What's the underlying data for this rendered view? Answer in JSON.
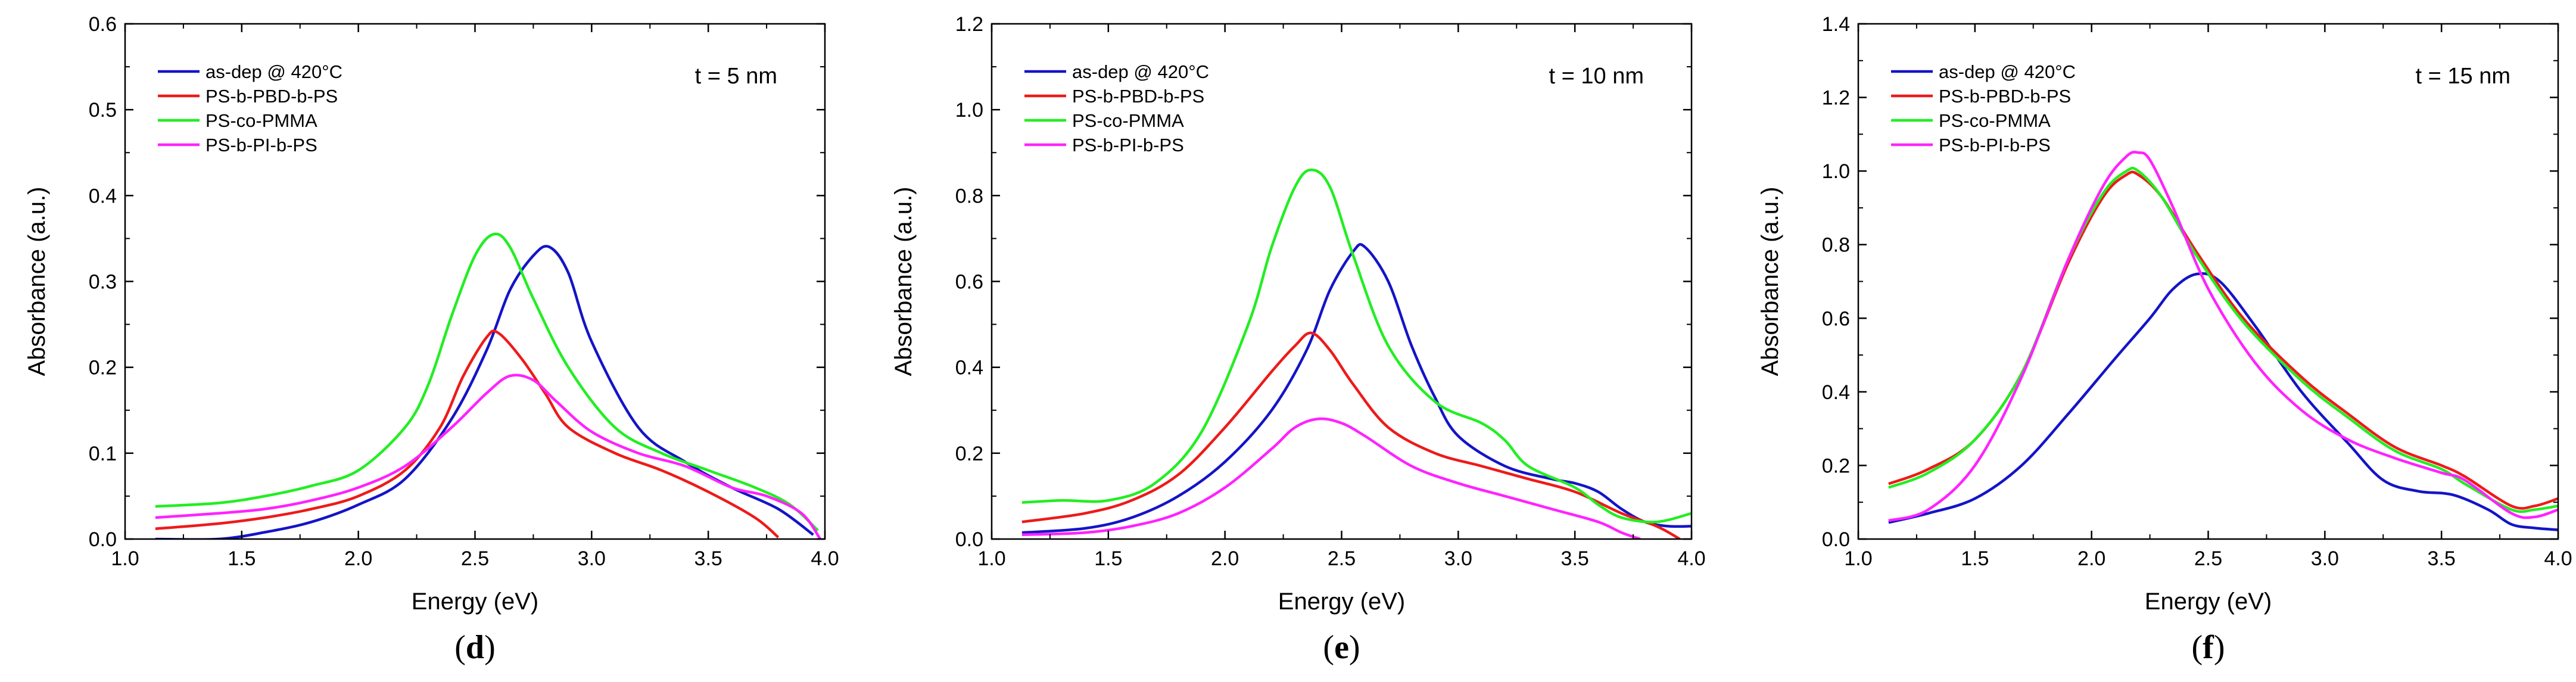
{
  "colors": {
    "as-dep": "#1414c8",
    "pbd": "#ee1a1a",
    "pmma": "#22ee22",
    "pi": "#ff22ff",
    "axis": "#000000"
  },
  "chart_data": [
    {
      "type": "line",
      "panel": "(d)",
      "panel_letter": "d",
      "annotation": "t = 5 nm",
      "xlabel": "Energy (eV)",
      "ylabel": "Absorbance (a.u.)",
      "xlim": [
        1.0,
        4.0
      ],
      "ylim": [
        0.0,
        0.6
      ],
      "xticks": [
        "1.0",
        "1.5",
        "2.0",
        "2.5",
        "3.0",
        "3.5",
        "4.0"
      ],
      "yticks": [
        "0.0",
        "0.1",
        "0.2",
        "0.3",
        "0.4",
        "0.5",
        "0.6"
      ],
      "legend_position": "top-left",
      "series": [
        {
          "name": "as-dep @ 420°C",
          "color_key": "as-dep",
          "x": [
            1.13,
            1.4,
            1.6,
            1.8,
            2.0,
            2.2,
            2.4,
            2.55,
            2.65,
            2.75,
            2.82,
            2.9,
            3.0,
            3.2,
            3.4,
            3.6,
            3.8,
            3.95
          ],
          "y": [
            0.0,
            0.0,
            0.008,
            0.02,
            0.04,
            0.07,
            0.14,
            0.22,
            0.29,
            0.33,
            0.34,
            0.31,
            0.23,
            0.13,
            0.09,
            0.06,
            0.035,
            0.005
          ]
        },
        {
          "name": "PS-b-PBD-b-PS",
          "color_key": "pbd",
          "x": [
            1.13,
            1.4,
            1.6,
            1.8,
            2.0,
            2.2,
            2.35,
            2.45,
            2.55,
            2.6,
            2.7,
            2.8,
            2.9,
            3.1,
            3.3,
            3.5,
            3.7,
            3.8
          ],
          "y": [
            0.012,
            0.018,
            0.025,
            0.035,
            0.05,
            0.08,
            0.13,
            0.19,
            0.235,
            0.24,
            0.21,
            0.17,
            0.13,
            0.1,
            0.08,
            0.055,
            0.025,
            0.002
          ]
        },
        {
          "name": "PS-co-PMMA",
          "color_key": "pmma",
          "x": [
            1.13,
            1.4,
            1.6,
            1.8,
            2.0,
            2.2,
            2.3,
            2.4,
            2.5,
            2.58,
            2.65,
            2.75,
            2.9,
            3.1,
            3.3,
            3.5,
            3.7,
            3.85,
            3.97
          ],
          "y": [
            0.038,
            0.042,
            0.05,
            0.062,
            0.08,
            0.13,
            0.18,
            0.26,
            0.33,
            0.355,
            0.34,
            0.28,
            0.2,
            0.13,
            0.1,
            0.08,
            0.06,
            0.04,
            0.01
          ]
        },
        {
          "name": "PS-b-PI-b-PS",
          "color_key": "pi",
          "x": [
            1.13,
            1.4,
            1.6,
            1.8,
            2.0,
            2.2,
            2.4,
            2.55,
            2.65,
            2.75,
            2.85,
            3.0,
            3.2,
            3.4,
            3.6,
            3.75,
            3.9,
            3.98
          ],
          "y": [
            0.025,
            0.03,
            0.035,
            0.045,
            0.06,
            0.085,
            0.13,
            0.17,
            0.19,
            0.185,
            0.16,
            0.125,
            0.1,
            0.085,
            0.06,
            0.05,
            0.03,
            0.0
          ]
        }
      ]
    },
    {
      "type": "line",
      "panel": "(e)",
      "panel_letter": "e",
      "annotation": "t = 10 nm",
      "xlabel": "Energy (eV)",
      "ylabel": "Absorbance (a.u.)",
      "xlim": [
        1.0,
        4.0
      ],
      "ylim": [
        0.0,
        1.2
      ],
      "xticks": [
        "1.0",
        "1.5",
        "2.0",
        "2.5",
        "3.0",
        "3.5",
        "4.0"
      ],
      "yticks": [
        "0.0",
        "0.2",
        "0.4",
        "0.6",
        "0.8",
        "1.0",
        "1.2"
      ],
      "legend_position": "top-left",
      "series": [
        {
          "name": "as-dep @ 420°C",
          "color_key": "as-dep",
          "x": [
            1.13,
            1.4,
            1.6,
            1.8,
            2.0,
            2.2,
            2.35,
            2.45,
            2.55,
            2.6,
            2.7,
            2.8,
            2.9,
            3.0,
            3.2,
            3.4,
            3.5,
            3.6,
            3.7,
            3.8,
            3.9,
            4.0
          ],
          "y": [
            0.015,
            0.025,
            0.05,
            0.1,
            0.18,
            0.3,
            0.44,
            0.58,
            0.67,
            0.68,
            0.6,
            0.45,
            0.33,
            0.24,
            0.17,
            0.14,
            0.13,
            0.11,
            0.07,
            0.04,
            0.03,
            0.03
          ]
        },
        {
          "name": "PS-b-PBD-b-PS",
          "color_key": "pbd",
          "x": [
            1.13,
            1.4,
            1.6,
            1.8,
            2.0,
            2.2,
            2.3,
            2.37,
            2.45,
            2.55,
            2.7,
            2.9,
            3.1,
            3.3,
            3.5,
            3.7,
            3.85,
            3.95
          ],
          "y": [
            0.04,
            0.06,
            0.09,
            0.15,
            0.26,
            0.39,
            0.45,
            0.48,
            0.44,
            0.36,
            0.26,
            0.2,
            0.17,
            0.14,
            0.11,
            0.06,
            0.03,
            0.0
          ]
        },
        {
          "name": "PS-co-PMMA",
          "color_key": "pmma",
          "x": [
            1.13,
            1.3,
            1.5,
            1.7,
            1.9,
            2.1,
            2.2,
            2.3,
            2.37,
            2.45,
            2.55,
            2.7,
            2.9,
            3.1,
            3.2,
            3.3,
            3.5,
            3.6,
            3.7,
            3.85,
            4.0
          ],
          "y": [
            0.085,
            0.09,
            0.09,
            0.13,
            0.25,
            0.5,
            0.68,
            0.82,
            0.86,
            0.82,
            0.66,
            0.45,
            0.32,
            0.27,
            0.23,
            0.17,
            0.12,
            0.08,
            0.05,
            0.04,
            0.06
          ]
        },
        {
          "name": "PS-b-PI-b-PS",
          "color_key": "pi",
          "x": [
            1.13,
            1.4,
            1.6,
            1.8,
            2.0,
            2.2,
            2.3,
            2.4,
            2.5,
            2.6,
            2.8,
            3.0,
            3.2,
            3.4,
            3.6,
            3.7,
            3.78
          ],
          "y": [
            0.01,
            0.015,
            0.03,
            0.06,
            0.12,
            0.21,
            0.26,
            0.28,
            0.27,
            0.24,
            0.17,
            0.13,
            0.1,
            0.07,
            0.04,
            0.015,
            0.0
          ]
        }
      ]
    },
    {
      "type": "line",
      "panel": "(f)",
      "panel_letter": "f",
      "annotation": "t = 15 nm",
      "xlabel": "Energy (eV)",
      "ylabel": "Absorbance (a.u.)",
      "xlim": [
        1.0,
        4.0
      ],
      "ylim": [
        0.0,
        1.4
      ],
      "xticks": [
        "1.0",
        "1.5",
        "2.0",
        "2.5",
        "3.0",
        "3.5",
        "4.0"
      ],
      "yticks": [
        "0.0",
        "0.2",
        "0.4",
        "0.6",
        "0.8",
        "1.0",
        "1.2",
        "1.4"
      ],
      "legend_position": "top-left",
      "series": [
        {
          "name": "as-dep @ 420°C",
          "color_key": "as-dep",
          "x": [
            1.13,
            1.3,
            1.5,
            1.7,
            1.9,
            2.1,
            2.25,
            2.35,
            2.45,
            2.55,
            2.7,
            2.9,
            3.1,
            3.25,
            3.4,
            3.55,
            3.7,
            3.8,
            3.9,
            4.0
          ],
          "y": [
            0.045,
            0.07,
            0.11,
            0.2,
            0.34,
            0.49,
            0.6,
            0.68,
            0.72,
            0.7,
            0.58,
            0.4,
            0.26,
            0.16,
            0.13,
            0.12,
            0.08,
            0.04,
            0.03,
            0.025
          ]
        },
        {
          "name": "PS-b-PBD-b-PS",
          "color_key": "pbd",
          "x": [
            1.13,
            1.3,
            1.5,
            1.7,
            1.9,
            2.05,
            2.15,
            2.2,
            2.3,
            2.45,
            2.65,
            2.9,
            3.1,
            3.3,
            3.5,
            3.6,
            3.8,
            3.9,
            4.0
          ],
          "y": [
            0.15,
            0.19,
            0.27,
            0.45,
            0.75,
            0.93,
            0.99,
            0.99,
            0.93,
            0.78,
            0.6,
            0.44,
            0.34,
            0.25,
            0.2,
            0.17,
            0.09,
            0.09,
            0.11
          ]
        },
        {
          "name": "PS-co-PMMA",
          "color_key": "pmma",
          "x": [
            1.13,
            1.3,
            1.5,
            1.7,
            1.9,
            2.05,
            2.15,
            2.2,
            2.3,
            2.45,
            2.65,
            2.9,
            3.1,
            3.3,
            3.5,
            3.6,
            3.8,
            3.9,
            4.0
          ],
          "y": [
            0.14,
            0.18,
            0.27,
            0.45,
            0.76,
            0.94,
            1.0,
            1.0,
            0.93,
            0.77,
            0.59,
            0.43,
            0.33,
            0.24,
            0.19,
            0.15,
            0.08,
            0.08,
            0.09
          ]
        },
        {
          "name": "PS-b-PI-b-PS",
          "color_key": "pi",
          "x": [
            1.13,
            1.3,
            1.5,
            1.7,
            1.9,
            2.05,
            2.15,
            2.2,
            2.25,
            2.35,
            2.5,
            2.7,
            2.9,
            3.1,
            3.3,
            3.5,
            3.6,
            3.8,
            3.9,
            4.0
          ],
          "y": [
            0.05,
            0.08,
            0.2,
            0.44,
            0.76,
            0.96,
            1.04,
            1.05,
            1.03,
            0.9,
            0.68,
            0.48,
            0.35,
            0.27,
            0.22,
            0.18,
            0.16,
            0.07,
            0.06,
            0.08
          ]
        }
      ]
    }
  ]
}
